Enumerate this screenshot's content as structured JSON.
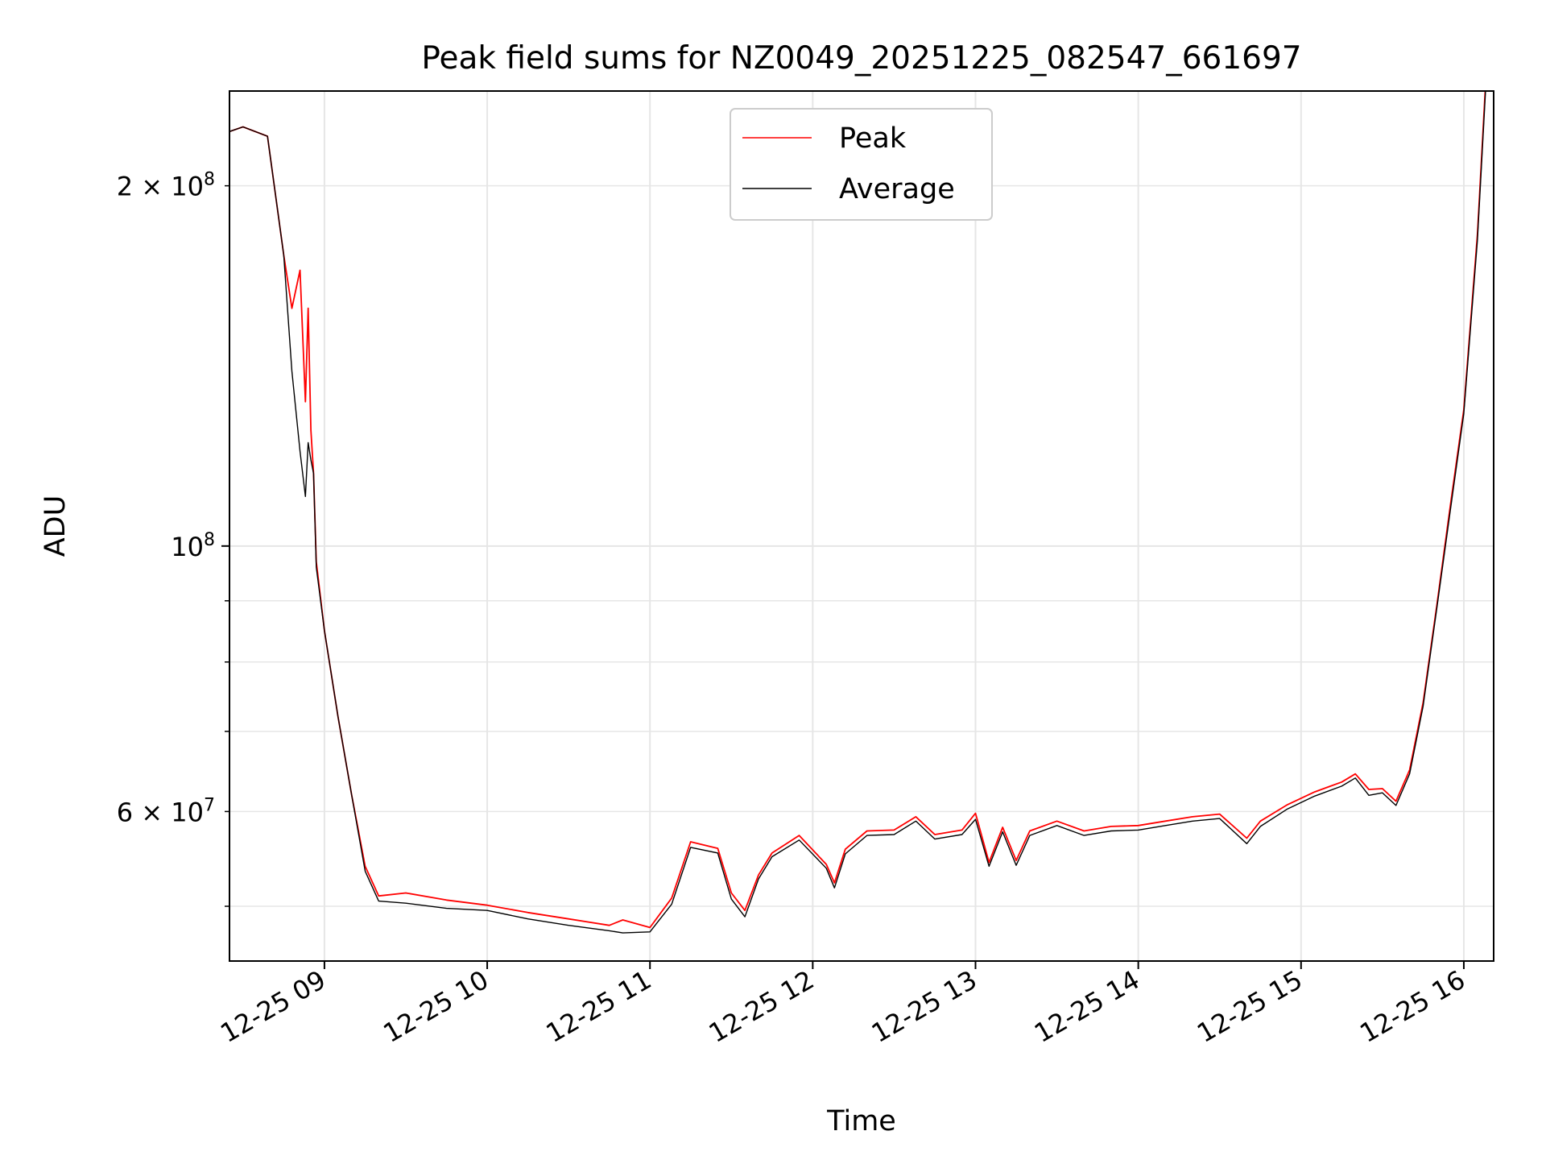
{
  "chart_data": {
    "type": "line",
    "title": "Peak field sums for NZ0049_20251225_082547_661697",
    "xlabel": "Time",
    "ylabel": "ADU",
    "x_axis": {
      "kind": "time",
      "range": [
        "2025-12-25 08:25",
        "2025-12-25 16:11"
      ],
      "ticks": [
        {
          "x": "2025-12-25 09:00",
          "label": "12-25 09"
        },
        {
          "x": "2025-12-25 10:00",
          "label": "12-25 10"
        },
        {
          "x": "2025-12-25 11:00",
          "label": "12-25 11"
        },
        {
          "x": "2025-12-25 12:00",
          "label": "12-25 12"
        },
        {
          "x": "2025-12-25 13:00",
          "label": "12-25 13"
        },
        {
          "x": "2025-12-25 14:00",
          "label": "12-25 14"
        },
        {
          "x": "2025-12-25 15:00",
          "label": "12-25 15"
        },
        {
          "x": "2025-12-25 16:00",
          "label": "12-25 16"
        }
      ]
    },
    "y_axis": {
      "scale": "log",
      "range": [
        45000000,
        240000000
      ],
      "major_ticks": [
        {
          "y": 100000000,
          "base": "10",
          "exp": "8"
        }
      ],
      "minor_tick_values": [
        50000000,
        60000000,
        70000000,
        80000000,
        90000000,
        200000000
      ],
      "minor_labeled": [
        {
          "y": 60000000,
          "mant": "6",
          "exp": "7"
        },
        {
          "y": 200000000,
          "mant": "2",
          "exp": "8"
        }
      ]
    },
    "grid": true,
    "legend": {
      "placement": "top-center",
      "entries": [
        "Peak",
        "Average"
      ]
    },
    "series": [
      {
        "name": "Peak",
        "color": "#ff0000",
        "x": [
          "2025-12-25 08:25",
          "2025-12-25 08:30",
          "2025-12-25 08:39",
          "2025-12-25 08:45",
          "2025-12-25 08:48",
          "2025-12-25 08:51",
          "2025-12-25 08:53",
          "2025-12-25 08:54",
          "2025-12-25 08:55",
          "2025-12-25 08:56",
          "2025-12-25 08:57",
          "2025-12-25 09:00",
          "2025-12-25 09:05",
          "2025-12-25 09:10",
          "2025-12-25 09:15",
          "2025-12-25 09:20",
          "2025-12-25 09:30",
          "2025-12-25 09:45",
          "2025-12-25 10:00",
          "2025-12-25 10:15",
          "2025-12-25 10:30",
          "2025-12-25 10:45",
          "2025-12-25 10:50",
          "2025-12-25 11:00",
          "2025-12-25 11:08",
          "2025-12-25 11:15",
          "2025-12-25 11:25",
          "2025-12-25 11:30",
          "2025-12-25 11:35",
          "2025-12-25 11:40",
          "2025-12-25 11:45",
          "2025-12-25 11:55",
          "2025-12-25 12:05",
          "2025-12-25 12:08",
          "2025-12-25 12:12",
          "2025-12-25 12:20",
          "2025-12-25 12:30",
          "2025-12-25 12:38",
          "2025-12-25 12:45",
          "2025-12-25 12:55",
          "2025-12-25 13:00",
          "2025-12-25 13:05",
          "2025-12-25 13:10",
          "2025-12-25 13:15",
          "2025-12-25 13:20",
          "2025-12-25 13:30",
          "2025-12-25 13:40",
          "2025-12-25 13:50",
          "2025-12-25 14:00",
          "2025-12-25 14:10",
          "2025-12-25 14:20",
          "2025-12-25 14:30",
          "2025-12-25 14:40",
          "2025-12-25 14:45",
          "2025-12-25 14:55",
          "2025-12-25 15:05",
          "2025-12-25 15:15",
          "2025-12-25 15:20",
          "2025-12-25 15:25",
          "2025-12-25 15:30",
          "2025-12-25 15:35",
          "2025-12-25 15:40",
          "2025-12-25 15:45",
          "2025-12-25 15:50",
          "2025-12-25 15:55",
          "2025-12-25 16:00",
          "2025-12-25 16:05",
          "2025-12-25 16:08"
        ],
        "y": [
          222000000,
          224000000,
          220000000,
          175000000,
          158000000,
          170000000,
          132000000,
          158000000,
          125000000,
          115000000,
          97000000,
          85000000,
          72000000,
          62000000,
          54000000,
          51000000,
          51300000,
          50600000,
          50100000,
          49400000,
          48800000,
          48200000,
          48700000,
          48000000,
          50800000,
          56600000,
          55900000,
          51300000,
          49600000,
          53100000,
          55400000,
          57300000,
          54200000,
          52300000,
          55800000,
          57800000,
          57900000,
          59400000,
          57400000,
          57900000,
          59800000,
          54400000,
          58200000,
          54600000,
          57800000,
          58900000,
          57800000,
          58300000,
          58400000,
          58900000,
          59400000,
          59700000,
          57000000,
          58900000,
          60800000,
          62300000,
          63500000,
          64500000,
          62600000,
          62700000,
          61200000,
          65000000,
          74000000,
          89000000,
          108000000,
          130000000,
          182000000,
          243000000
        ]
      },
      {
        "name": "Average",
        "color": "#000000",
        "x": [
          "2025-12-25 08:25",
          "2025-12-25 08:30",
          "2025-12-25 08:39",
          "2025-12-25 08:45",
          "2025-12-25 08:48",
          "2025-12-25 08:51",
          "2025-12-25 08:53",
          "2025-12-25 08:54",
          "2025-12-25 08:55",
          "2025-12-25 08:56",
          "2025-12-25 08:57",
          "2025-12-25 09:00",
          "2025-12-25 09:05",
          "2025-12-25 09:10",
          "2025-12-25 09:15",
          "2025-12-25 09:20",
          "2025-12-25 09:30",
          "2025-12-25 09:45",
          "2025-12-25 10:00",
          "2025-12-25 10:15",
          "2025-12-25 10:30",
          "2025-12-25 10:45",
          "2025-12-25 10:50",
          "2025-12-25 11:00",
          "2025-12-25 11:08",
          "2025-12-25 11:15",
          "2025-12-25 11:25",
          "2025-12-25 11:30",
          "2025-12-25 11:35",
          "2025-12-25 11:40",
          "2025-12-25 11:45",
          "2025-12-25 11:55",
          "2025-12-25 12:05",
          "2025-12-25 12:08",
          "2025-12-25 12:12",
          "2025-12-25 12:20",
          "2025-12-25 12:30",
          "2025-12-25 12:38",
          "2025-12-25 12:45",
          "2025-12-25 12:55",
          "2025-12-25 13:00",
          "2025-12-25 13:05",
          "2025-12-25 13:10",
          "2025-12-25 13:15",
          "2025-12-25 13:20",
          "2025-12-25 13:30",
          "2025-12-25 13:40",
          "2025-12-25 13:50",
          "2025-12-25 14:00",
          "2025-12-25 14:10",
          "2025-12-25 14:20",
          "2025-12-25 14:30",
          "2025-12-25 14:40",
          "2025-12-25 14:45",
          "2025-12-25 14:55",
          "2025-12-25 15:05",
          "2025-12-25 15:15",
          "2025-12-25 15:20",
          "2025-12-25 15:25",
          "2025-12-25 15:30",
          "2025-12-25 15:35",
          "2025-12-25 15:40",
          "2025-12-25 15:45",
          "2025-12-25 15:50",
          "2025-12-25 15:55",
          "2025-12-25 16:00",
          "2025-12-25 16:05",
          "2025-12-25 16:08"
        ],
        "y": [
          222000000,
          224000000,
          220000000,
          175000000,
          140000000,
          120000000,
          110000000,
          122000000,
          118000000,
          115000000,
          96000000,
          85000000,
          72000000,
          62000000,
          53500000,
          50500000,
          50300000,
          49800000,
          49600000,
          48800000,
          48200000,
          47700000,
          47500000,
          47600000,
          50200000,
          56000000,
          55400000,
          50700000,
          49000000,
          52700000,
          55000000,
          56800000,
          53800000,
          51800000,
          55300000,
          57300000,
          57400000,
          58900000,
          56900000,
          57400000,
          59100000,
          54000000,
          57700000,
          54100000,
          57300000,
          58400000,
          57300000,
          57800000,
          57900000,
          58400000,
          58900000,
          59200000,
          56400000,
          58300000,
          60300000,
          61800000,
          63000000,
          64000000,
          61900000,
          62200000,
          60700000,
          64500000,
          73500000,
          88500000,
          107000000,
          129000000,
          180000000,
          240000000
        ]
      }
    ]
  }
}
